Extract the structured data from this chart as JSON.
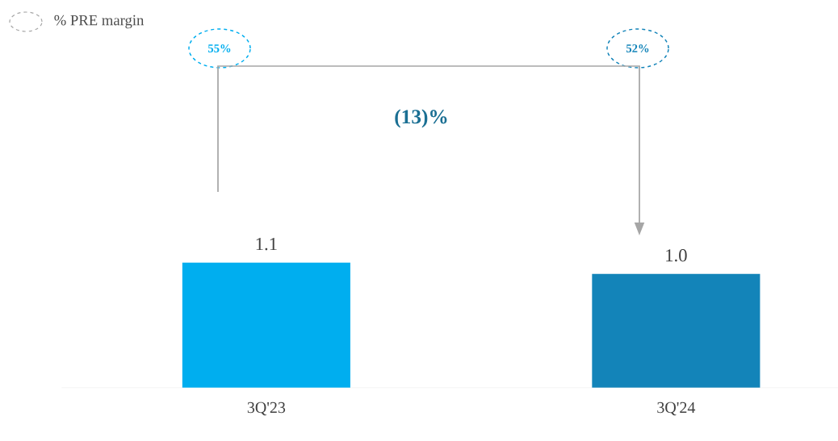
{
  "chart_data": {
    "type": "bar",
    "categories": [
      "3Q'23",
      "3Q'24"
    ],
    "values": [
      1.1,
      1.0
    ],
    "colors": [
      "#00aeef",
      "#1384b9"
    ],
    "value_labels": [
      "1.1",
      "1.0"
    ],
    "annotations": [
      "% PRE margin",
      "55%",
      "52%",
      "(13)%"
    ]
  }
}
